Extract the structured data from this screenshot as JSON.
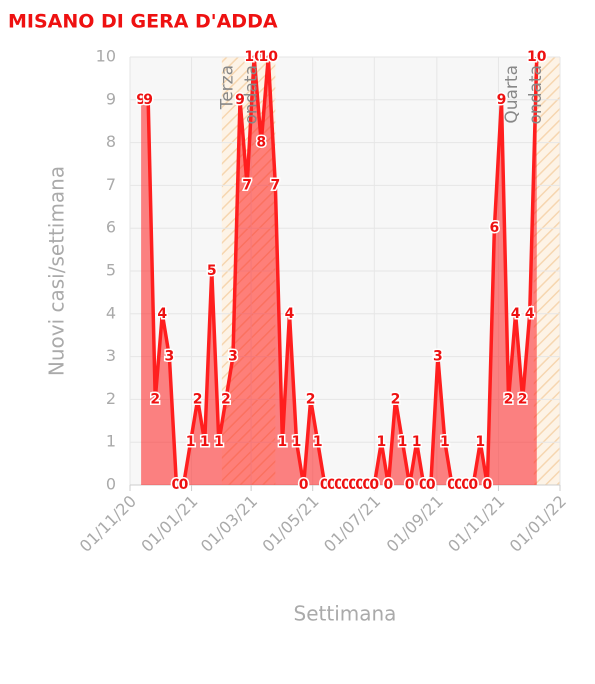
{
  "chart_data": {
    "type": "area",
    "title": "MISANO DI GERA D'ADDA",
    "x_label": "Settimana",
    "y_label": "Nuovi casi/settimana",
    "color": "#ff1f1f",
    "xlim": [
      "2020-11-01",
      "2022-01-01"
    ],
    "xticks": [
      {
        "value": "2020-11-01",
        "label": "01/11/20"
      },
      {
        "value": "2021-01-01",
        "label": "01/01/21"
      },
      {
        "value": "2021-03-01",
        "label": "01/03/21"
      },
      {
        "value": "2021-05-01",
        "label": "01/05/21"
      },
      {
        "value": "2021-07-01",
        "label": "01/07/21"
      },
      {
        "value": "2021-09-01",
        "label": "01/09/21"
      },
      {
        "value": "2021-11-01",
        "label": "01/11/21"
      },
      {
        "value": "2022-01-01",
        "label": "01/01/22"
      }
    ],
    "ylim": [
      0,
      10
    ],
    "yticks": [
      0,
      1,
      2,
      3,
      4,
      5,
      6,
      7,
      8,
      9,
      10
    ],
    "grid": true,
    "start": "2020-11-12",
    "step_days": 7,
    "values": [
      9,
      9,
      2,
      4,
      3,
      0,
      0,
      1,
      2,
      1,
      5,
      1,
      2,
      3,
      9,
      7,
      10,
      8,
      10,
      7,
      1,
      4,
      1,
      0,
      2,
      1,
      0,
      0,
      0,
      0,
      0,
      0,
      0,
      0,
      1,
      0,
      2,
      1,
      0,
      1,
      0,
      0,
      3,
      1,
      0,
      0,
      0,
      0,
      1,
      0,
      6,
      9,
      2,
      4,
      2,
      4,
      10
    ],
    "zones": [
      {
        "label_lines": [
          "Terza",
          "ondata"
        ],
        "start": "2021-01-31",
        "end": "2021-03-25"
      },
      {
        "label_lines": [
          "Quarta",
          "ondata"
        ],
        "start": "2021-12-06",
        "end": "2022-01-01"
      }
    ]
  }
}
